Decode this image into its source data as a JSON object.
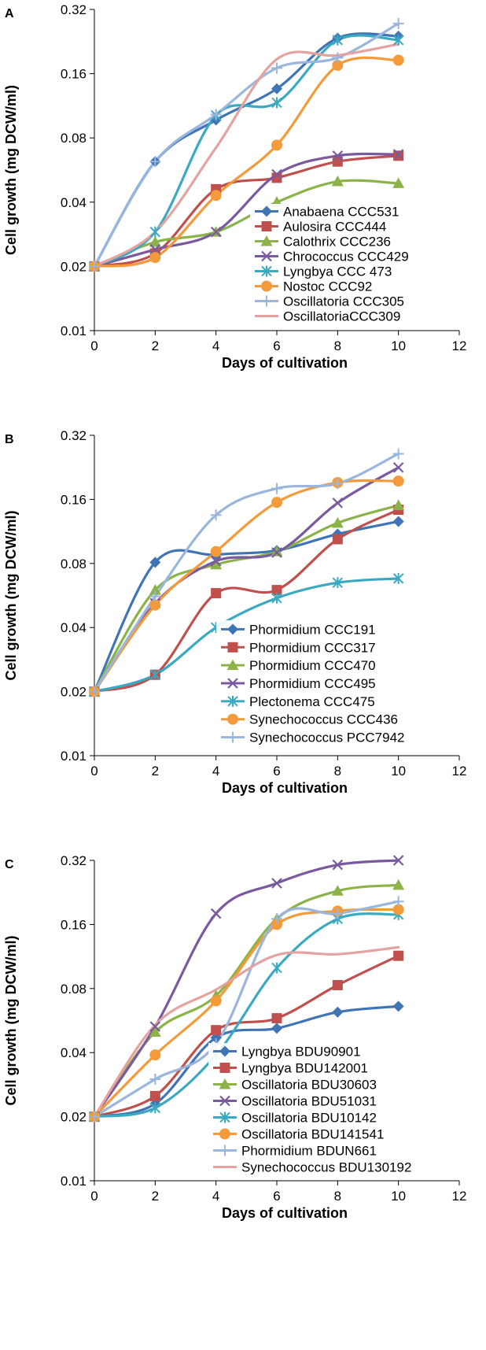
{
  "chart_data": [
    {
      "type": "line",
      "panel_label": "A",
      "xlabel": "Days of cultivation",
      "ylabel": "Cell growth (mg DCW/ml)",
      "yscale": "log2",
      "xlim": [
        0,
        12
      ],
      "ylim": [
        0.01,
        0.32
      ],
      "xticks": [
        "0",
        "2",
        "4",
        "6",
        "8",
        "10",
        "12"
      ],
      "yticks": [
        "0.01",
        "0.02",
        "0.04",
        "0.08",
        "0.16",
        "0.32"
      ],
      "x": [
        0,
        2,
        4,
        6,
        8,
        10
      ],
      "series": [
        {
          "name": "Anabaena CCC531",
          "color": "#3f74b5",
          "marker": "diamond",
          "values": [
            0.02,
            0.062,
            0.097,
            0.136,
            0.235,
            0.24
          ]
        },
        {
          "name": "Aulosira CCC444",
          "color": "#c0504d",
          "marker": "square",
          "values": [
            0.02,
            0.023,
            0.046,
            0.052,
            0.062,
            0.066
          ]
        },
        {
          "name": "Calothrix CCC236",
          "color": "#8cb34a",
          "marker": "triangle",
          "values": [
            0.02,
            0.026,
            0.029,
            0.04,
            0.05,
            0.049
          ]
        },
        {
          "name": "Chrococcus CCC429",
          "color": "#7a5a9e",
          "marker": "x",
          "values": [
            0.02,
            0.024,
            0.029,
            0.054,
            0.066,
            0.067
          ]
        },
        {
          "name": "Lyngbya CCC 473",
          "color": "#3ba9c0",
          "marker": "star",
          "values": [
            0.02,
            0.029,
            0.102,
            0.117,
            0.23,
            0.23
          ]
        },
        {
          "name": "Nostoc CCC92",
          "color": "#f39a3a",
          "marker": "circle",
          "values": [
            0.02,
            0.022,
            0.043,
            0.074,
            0.175,
            0.185
          ]
        },
        {
          "name": "Oscillatoria CCC305",
          "color": "#9ab6dd",
          "marker": "plus",
          "values": [
            0.02,
            0.062,
            0.103,
            0.17,
            0.19,
            0.275
          ]
        },
        {
          "name": "OscillatoriaCCC309",
          "color": "#e3a3a0",
          "marker": "none",
          "values": [
            0.02,
            0.029,
            0.072,
            0.187,
            0.195,
            0.22
          ]
        }
      ]
    },
    {
      "type": "line",
      "panel_label": "B",
      "xlabel": "Days of cultivation",
      "ylabel": "Cell growth (mg DCW/ml)",
      "yscale": "log2",
      "xlim": [
        0,
        12
      ],
      "ylim": [
        0.01,
        0.32
      ],
      "xticks": [
        "0",
        "2",
        "4",
        "6",
        "8",
        "10",
        "12"
      ],
      "yticks": [
        "0.01",
        "0.02",
        "0.04",
        "0.08",
        "0.16",
        "0.32"
      ],
      "x": [
        0,
        2,
        4,
        6,
        8,
        10
      ],
      "series": [
        {
          "name": "Phormidium CCC191",
          "color": "#3f74b5",
          "marker": "diamond",
          "values": [
            0.02,
            0.081,
            0.088,
            0.092,
            0.11,
            0.126
          ]
        },
        {
          "name": "Phormidium CCC317",
          "color": "#c0504d",
          "marker": "square",
          "values": [
            0.02,
            0.024,
            0.058,
            0.06,
            0.104,
            0.143
          ]
        },
        {
          "name": "Phormidium CCC470",
          "color": "#8cb34a",
          "marker": "triangle",
          "values": [
            0.02,
            0.06,
            0.079,
            0.091,
            0.124,
            0.15
          ]
        },
        {
          "name": "Phormidium CCC495",
          "color": "#7a5a9e",
          "marker": "x",
          "values": [
            0.02,
            0.052,
            0.082,
            0.09,
            0.154,
            0.226
          ]
        },
        {
          "name": "Plectonema CCC475",
          "color": "#3ba9c0",
          "marker": "star",
          "values": [
            0.02,
            0.024,
            0.04,
            0.055,
            0.065,
            0.068
          ]
        },
        {
          "name": "Synechococcus CCC436",
          "color": "#f39a3a",
          "marker": "circle",
          "values": [
            0.02,
            0.051,
            0.091,
            0.155,
            0.192,
            0.195
          ]
        },
        {
          "name": "Synechococcus  PCC7942",
          "color": "#9ab6dd",
          "marker": "plus",
          "values": [
            0.02,
            0.056,
            0.135,
            0.18,
            0.19,
            0.262
          ]
        }
      ]
    },
    {
      "type": "line",
      "panel_label": "C",
      "xlabel": "Days of cultivation",
      "ylabel": "Cell growth (mg DCW/ml)",
      "yscale": "log2",
      "xlim": [
        0,
        12
      ],
      "ylim": [
        0.01,
        0.32
      ],
      "xticks": [
        "0",
        "2",
        "4",
        "6",
        "8",
        "10",
        "12"
      ],
      "yticks": [
        "0.01",
        "0.02",
        "0.04",
        "0.08",
        "0.16",
        "0.32"
      ],
      "x": [
        0,
        2,
        4,
        6,
        8,
        10
      ],
      "series": [
        {
          "name": "Lyngbya BDU90901",
          "color": "#3f74b5",
          "marker": "diamond",
          "values": [
            0.02,
            0.023,
            0.047,
            0.052,
            0.062,
            0.066
          ]
        },
        {
          "name": "Lyngbya BDU142001",
          "color": "#c0504d",
          "marker": "square",
          "values": [
            0.02,
            0.025,
            0.051,
            0.058,
            0.083,
            0.114
          ]
        },
        {
          "name": "Oscillatoria BDU30603",
          "color": "#8cb34a",
          "marker": "triangle",
          "values": [
            0.02,
            0.05,
            0.074,
            0.17,
            0.23,
            0.245
          ]
        },
        {
          "name": "Oscillatoria BDU51031",
          "color": "#7a5a9e",
          "marker": "x",
          "values": [
            0.02,
            0.053,
            0.18,
            0.25,
            0.305,
            0.32
          ]
        },
        {
          "name": "Oscillatoria BDU10142",
          "color": "#3ba9c0",
          "marker": "star",
          "values": [
            0.02,
            0.022,
            0.039,
            0.1,
            0.17,
            0.178
          ]
        },
        {
          "name": "Oscillatoria BDU141541",
          "color": "#f39a3a",
          "marker": "circle",
          "values": [
            0.02,
            0.039,
            0.07,
            0.16,
            0.185,
            0.188
          ]
        },
        {
          "name": "Phormidium BDUN661",
          "color": "#9ab6dd",
          "marker": "plus",
          "values": [
            0.02,
            0.03,
            0.044,
            0.17,
            0.18,
            0.205
          ]
        },
        {
          "name": "Synechococcus BDU130192",
          "color": "#e3a3a0",
          "marker": "none",
          "values": [
            0.02,
            0.054,
            0.079,
            0.115,
            0.116,
            0.125
          ]
        }
      ]
    }
  ]
}
